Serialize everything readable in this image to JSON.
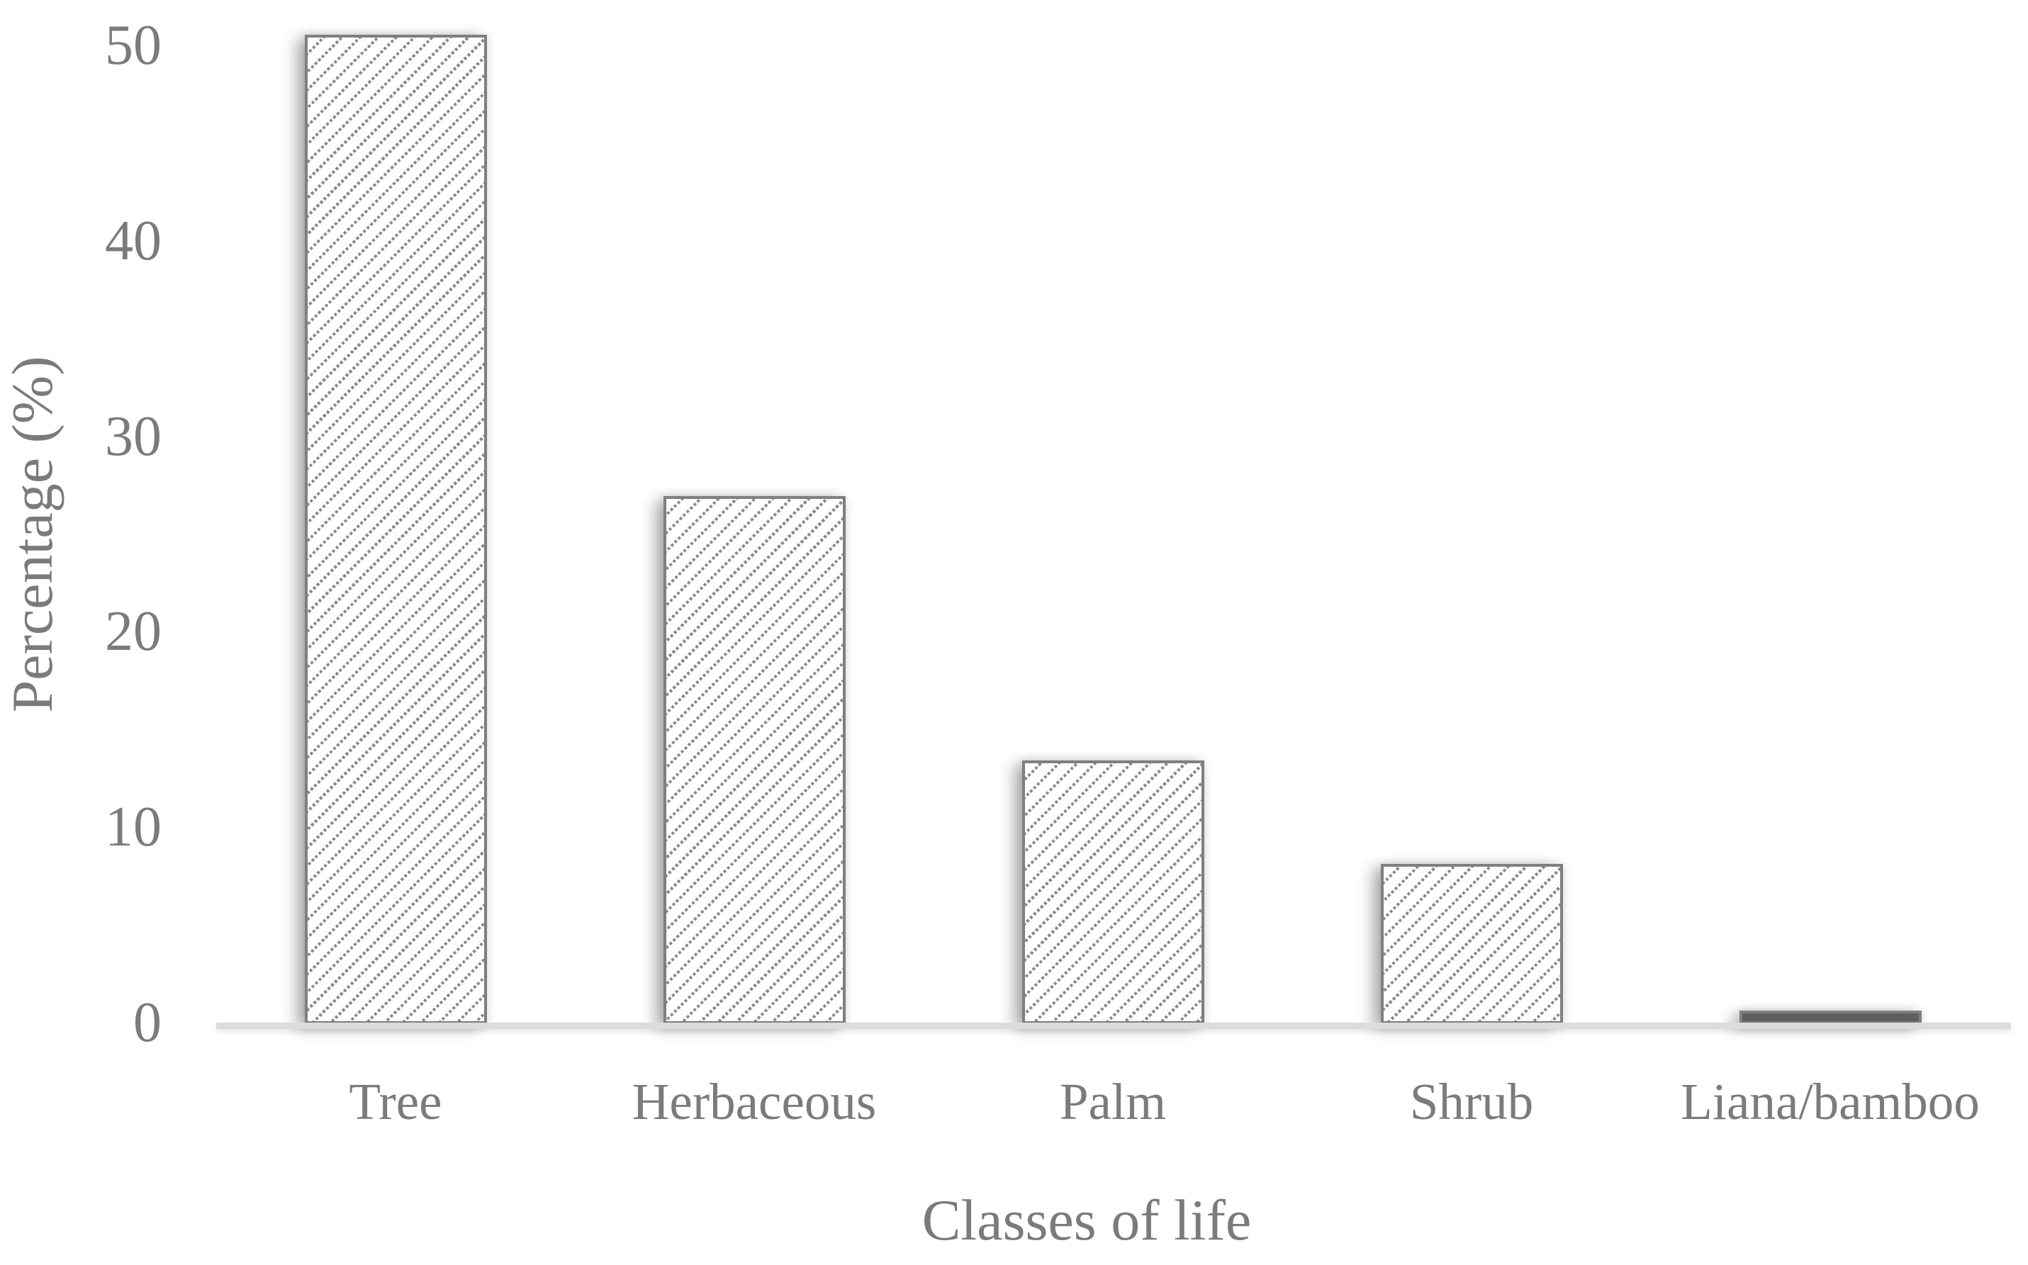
{
  "chart_data": {
    "type": "bar",
    "title": "",
    "categories": [
      "Tree",
      "Herbaceous",
      "Palm",
      "Shrub",
      "Liana/bamboo"
    ],
    "values": [
      50.6,
      27.0,
      13.5,
      8.2,
      0.7
    ],
    "xlabel": "Classes of life",
    "ylabel": "Percentage (%)",
    "yticks": [
      0,
      10,
      20,
      30,
      40,
      50
    ],
    "ylim": [
      0,
      51
    ],
    "grid": false,
    "legend": false,
    "bar_fill": "white-with-gray-dashed-diagonal-hatch",
    "hatch_direction": "up-diagonal",
    "solid_bar_category": "Liana/bamboo",
    "colors": {
      "text": "#7b7b7b",
      "bar_border": "#7f7f7f",
      "hatch_line": "#8a8a8a",
      "solid_bar_fill": "#5e5e5e",
      "axis_line": "#dcdcdc",
      "background": "#ffffff"
    }
  }
}
